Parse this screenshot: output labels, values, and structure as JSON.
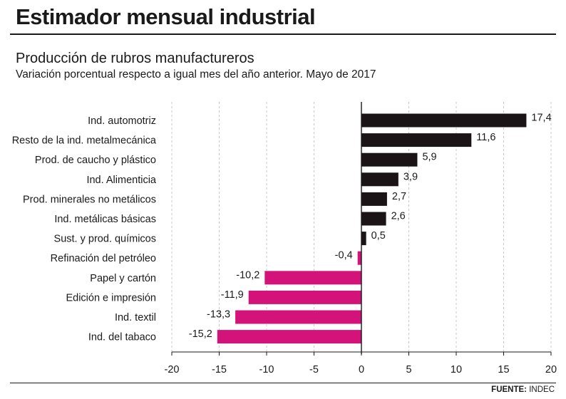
{
  "header": {
    "title": "Estimador mensual industrial",
    "subtitle": "Producción de rubros manufactureros",
    "description": "Variación porcentual respecto a igual mes del año anterior. Mayo de 2017"
  },
  "footer": {
    "source_label": "FUENTE:",
    "source_value": "INDEC"
  },
  "colors": {
    "positive": "#1a1417",
    "negative": "#d4137a",
    "grid": "#c8c8c8",
    "text": "#1a1a1a"
  },
  "chart_data": {
    "type": "bar",
    "orientation": "horizontal",
    "title": "Producción de rubros manufactureros",
    "xlabel": "",
    "ylabel": "",
    "xlim": [
      -20,
      20
    ],
    "xticks": [
      -20,
      -15,
      -10,
      -5,
      0,
      5,
      10,
      15,
      20
    ],
    "grid": "vertical dashed",
    "categories": [
      "Ind. automotriz",
      "Resto de la ind. metalmecánica",
      "Prod. de caucho y plástico",
      "Ind. Alimenticia",
      "Prod. minerales no metálicos",
      "Ind. metálicas básicas",
      "Sust. y prod. químicos",
      "Refinación del petróleo",
      "Papel y cartón",
      "Edición e impresión",
      "Ind. textil",
      "Ind. del tabaco"
    ],
    "values": [
      17.4,
      11.6,
      5.9,
      3.9,
      2.7,
      2.6,
      0.5,
      -0.4,
      -10.2,
      -11.9,
      -13.3,
      -15.2
    ],
    "value_labels": [
      "17,4",
      "11,6",
      "5,9",
      "3,9",
      "2,7",
      "2,6",
      "0,5",
      "-0,4",
      "-10,2",
      "-11,9",
      "-13,3",
      "-15,2"
    ]
  }
}
